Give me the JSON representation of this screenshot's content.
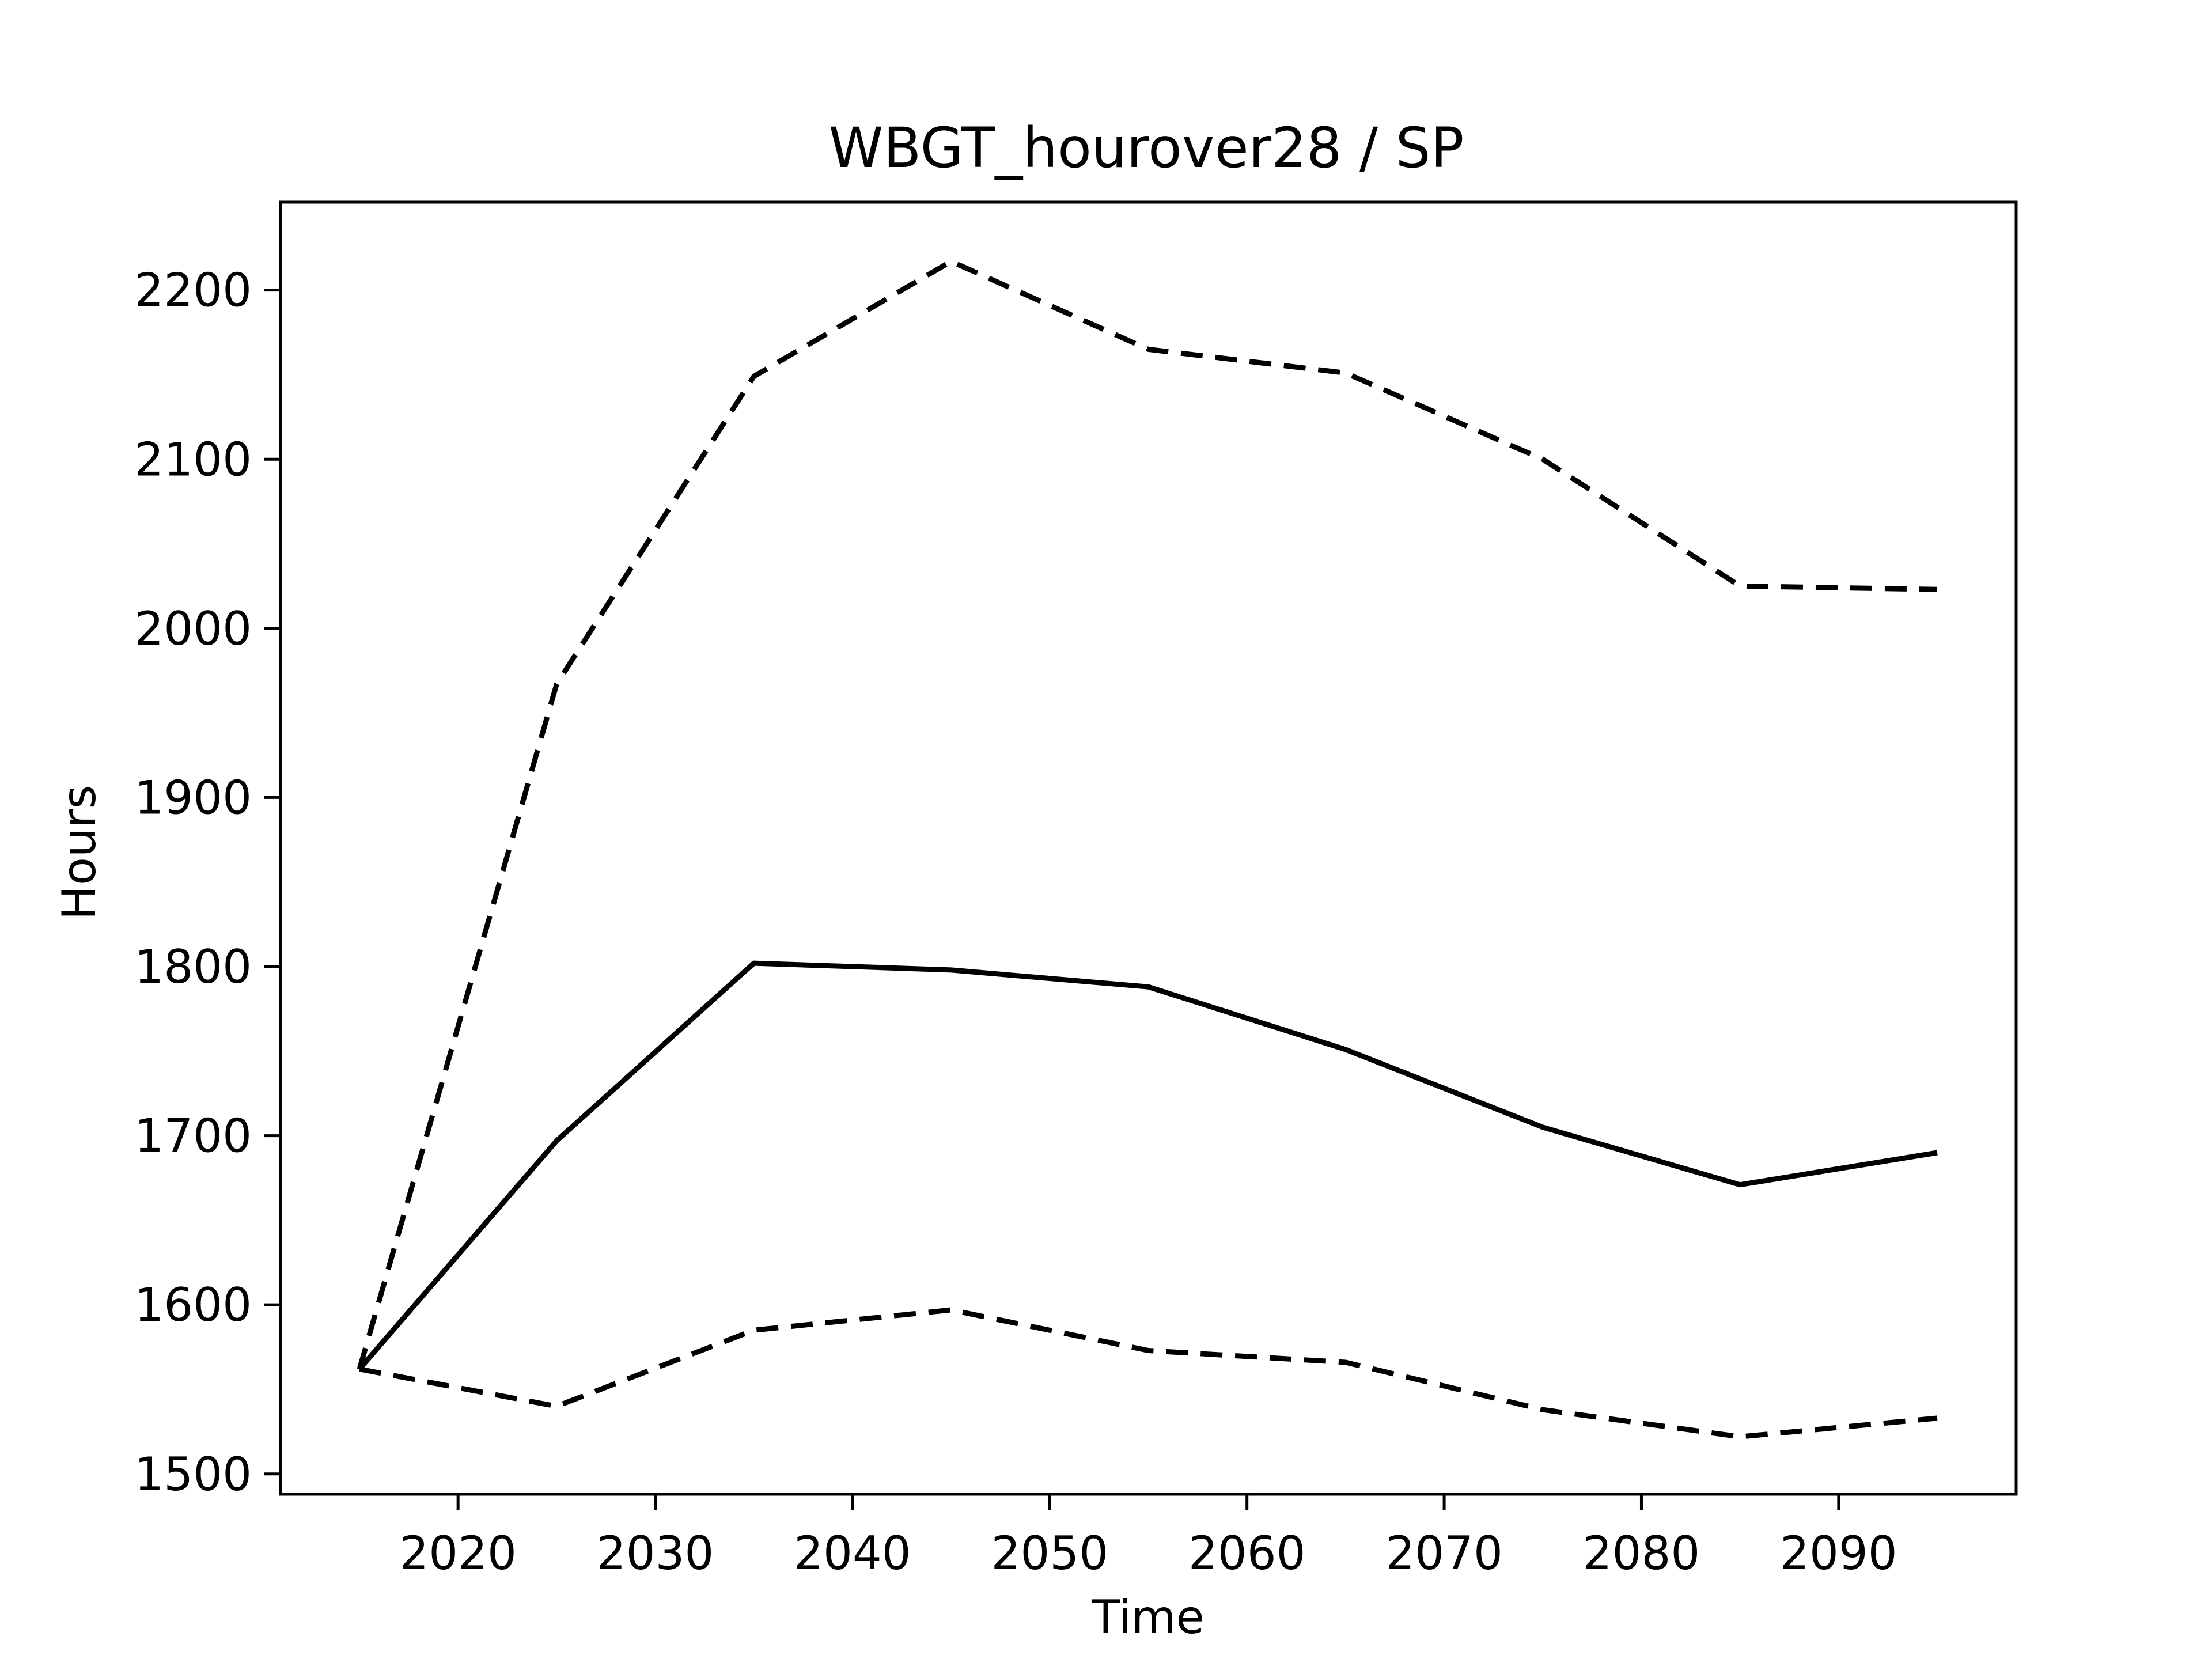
{
  "chart_data": {
    "type": "line",
    "title": "WBGT_hourover28 / SP",
    "xlabel": "Time",
    "ylabel": "Hours",
    "x": [
      2015,
      2025,
      2035,
      2045,
      2055,
      2065,
      2075,
      2085,
      2095
    ],
    "xlim": [
      2011,
      2099
    ],
    "ylim": [
      1488,
      2252
    ],
    "xticks": [
      2020,
      2030,
      2040,
      2050,
      2060,
      2070,
      2080,
      2090
    ],
    "yticks": [
      1500,
      1600,
      1700,
      1800,
      1900,
      2000,
      2100,
      2200
    ],
    "grid": false,
    "series": [
      {
        "style": "solid",
        "color": "#000000",
        "values": [
          1562,
          1697,
          1802,
          1798,
          1788,
          1751,
          1705,
          1671,
          1690
        ]
      },
      {
        "style": "dashed",
        "color": "#000000",
        "values": [
          1562,
          1967,
          2149,
          2217,
          2165,
          2151,
          2100,
          2025,
          2023
        ]
      },
      {
        "style": "dashed",
        "color": "#000000",
        "values": [
          1562,
          1540,
          1585,
          1597,
          1573,
          1566,
          1538,
          1522,
          1533
        ]
      }
    ]
  }
}
